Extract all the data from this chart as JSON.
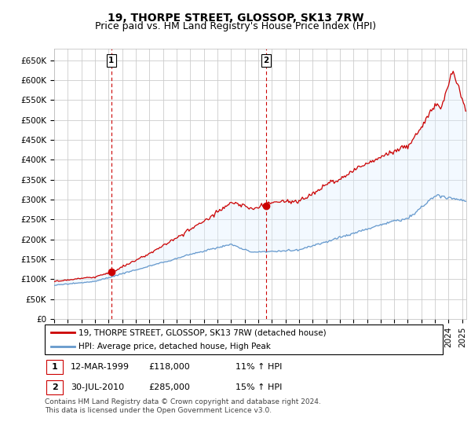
{
  "title": "19, THORPE STREET, GLOSSOP, SK13 7RW",
  "subtitle": "Price paid vs. HM Land Registry's House Price Index (HPI)",
  "ylim": [
    0,
    680000
  ],
  "yticks": [
    0,
    50000,
    100000,
    150000,
    200000,
    250000,
    300000,
    350000,
    400000,
    450000,
    500000,
    550000,
    600000,
    650000
  ],
  "xlim_start": 1995.0,
  "xlim_end": 2025.3,
  "red_line_color": "#cc0000",
  "blue_line_color": "#6699cc",
  "fill_color": "#ddeeff",
  "grid_color": "#cccccc",
  "bg_color": "#ffffff",
  "sale1_x": 1999.2,
  "sale1_y": 118000,
  "sale1_label": "1",
  "sale2_x": 2010.58,
  "sale2_y": 285000,
  "sale2_label": "2",
  "legend_line1": "19, THORPE STREET, GLOSSOP, SK13 7RW (detached house)",
  "legend_line2": "HPI: Average price, detached house, High Peak",
  "table_row1": [
    "1",
    "12-MAR-1999",
    "£118,000",
    "11% ↑ HPI"
  ],
  "table_row2": [
    "2",
    "30-JUL-2010",
    "£285,000",
    "15% ↑ HPI"
  ],
  "footer": "Contains HM Land Registry data © Crown copyright and database right 2024.\nThis data is licensed under the Open Government Licence v3.0.",
  "title_fontsize": 10,
  "subtitle_fontsize": 9,
  "tick_fontsize": 7.5
}
